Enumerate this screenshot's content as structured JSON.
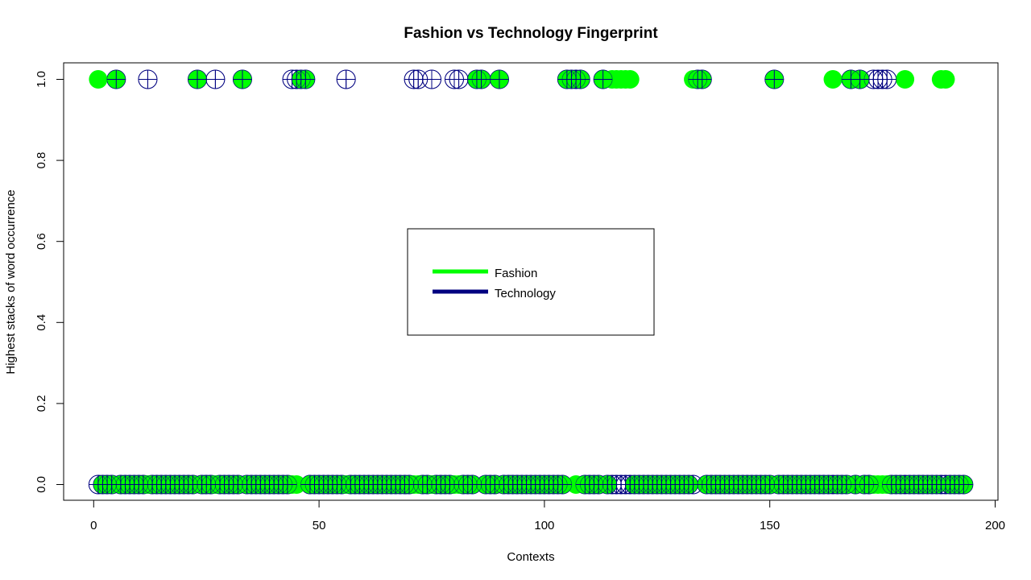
{
  "chart_data": {
    "type": "scatter",
    "title": "Fashion vs Technology Fingerprint",
    "xlabel": "Contexts",
    "ylabel": "Highest stacks of word occurrence",
    "xlim": [
      0,
      200
    ],
    "ylim": [
      0,
      1
    ],
    "x_ticks": [
      "0",
      "50",
      "100",
      "150",
      "200"
    ],
    "y_ticks": [
      "0.0",
      "0.2",
      "0.4",
      "0.6",
      "0.8",
      "1.0"
    ],
    "grid": false,
    "legend": {
      "position": "center",
      "entries": [
        {
          "label": "Fashion",
          "color": "#00ff00"
        },
        {
          "label": "Technology",
          "color": "#000080"
        }
      ]
    },
    "series": [
      {
        "name": "Fashion",
        "color": "#00ff00",
        "marker": "filled-circle",
        "x_at_1": [
          1,
          5,
          23,
          33,
          46,
          47,
          85,
          86,
          90,
          105,
          106,
          108,
          113,
          115,
          116,
          117,
          118,
          119,
          133,
          134,
          135,
          151,
          164,
          168,
          170,
          180,
          188,
          189
        ],
        "x_range": [
          1,
          193
        ],
        "y_values_otherwise": 0
      },
      {
        "name": "Technology",
        "color": "#000080",
        "marker": "circle-plus",
        "x_at_1": [
          5,
          12,
          23,
          27,
          33,
          44,
          45,
          46,
          47,
          56,
          71,
          72,
          75,
          80,
          81,
          85,
          86,
          90,
          105,
          106,
          107,
          108,
          113,
          134,
          135,
          151,
          168,
          170,
          173,
          174,
          175,
          176
        ],
        "x_range": [
          1,
          193
        ],
        "y_values_otherwise": 0
      }
    ]
  }
}
